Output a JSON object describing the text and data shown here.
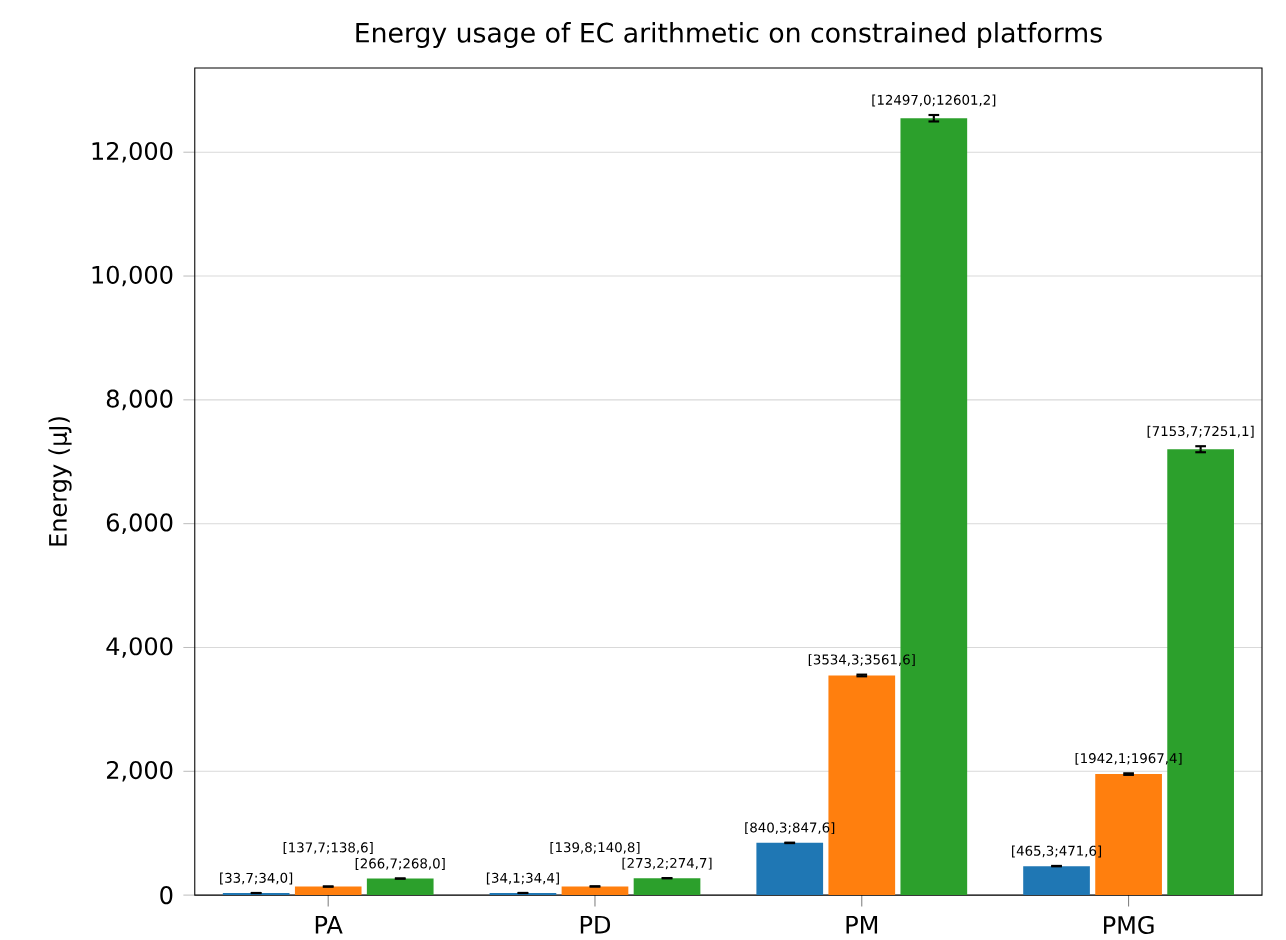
{
  "chart_data": {
    "type": "bar",
    "title": "Energy usage of EC arithmetic on constrained platforms",
    "ylabel": "Energy (µJ)",
    "categories": [
      "PA",
      "PD",
      "PM",
      "PMG"
    ],
    "ylim": [
      0,
      13360
    ],
    "yticks": [
      0,
      {
        "value": 2000,
        "label": "2,000"
      },
      {
        "value": 4000,
        "label": "4,000"
      },
      {
        "value": 6000,
        "label": "6,000"
      },
      {
        "value": 8000,
        "label": "8,000"
      },
      {
        "value": 10000,
        "label": "10,000"
      },
      {
        "value": 12000,
        "label": "12,000"
      }
    ],
    "grid": "y",
    "series": [
      {
        "color": "#1f77b4",
        "values": [
          34,
          34,
          844,
          468
        ],
        "errors": [
          [
            33.7,
            34.0
          ],
          [
            34.1,
            34.4
          ],
          [
            840.3,
            847.6
          ],
          [
            465.3,
            471.6
          ]
        ],
        "value_labels": [
          "[33,7;34,0]",
          "[34,1;34,4]",
          "[840,3;847,6]",
          "[465,3;471,6]"
        ]
      },
      {
        "color": "#ff7f0e",
        "values": [
          138,
          140,
          3548,
          1955
        ],
        "errors": [
          [
            137.7,
            138.6
          ],
          [
            139.8,
            140.8
          ],
          [
            3534.3,
            3561.6
          ],
          [
            1942.1,
            1967.4
          ]
        ],
        "value_labels": [
          "[137,7;138,6]",
          "[139,8;140,8]",
          "[3534,3;3561,6]",
          "[1942,1;1967,4]"
        ]
      },
      {
        "color": "#2ca02c",
        "values": [
          267,
          274,
          12549,
          7202
        ],
        "errors": [
          [
            266.7,
            268.0
          ],
          [
            273.2,
            274.7
          ],
          [
            12497.0,
            12601.2
          ],
          [
            7153.7,
            7251.1
          ]
        ],
        "value_labels": [
          "[266,7;268,0]",
          "[273,2;274,7]",
          "[12497,0;12601,2]",
          "[7153,7;7251,1]"
        ]
      }
    ]
  }
}
